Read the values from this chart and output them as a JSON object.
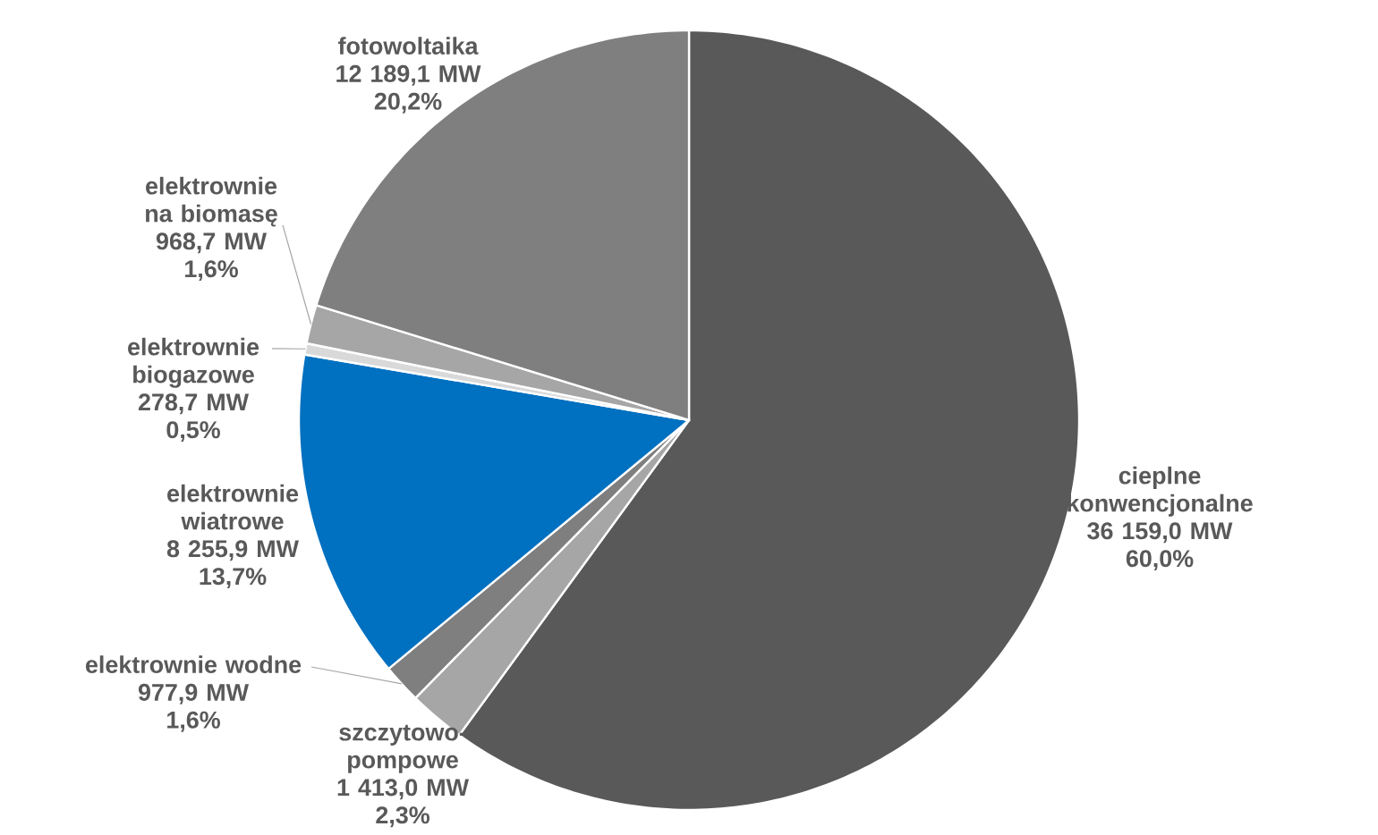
{
  "chart_data": {
    "type": "pie",
    "categories": [
      "cieplne konwencjonalne",
      "szczytowo-pompowe",
      "elektrownie wodne",
      "elektrownie wiatrowe",
      "elektrownie biogazowe",
      "elektrownie na biomasę",
      "fotowoltaika"
    ],
    "values": [
      36159.0,
      1413.0,
      977.9,
      8255.9,
      278.7,
      968.7,
      12189.1
    ],
    "value_labels": [
      "36 159,0 MW",
      "1 413,0 MW",
      "977,9 MW",
      "8 255,9 MW",
      "278,7 MW",
      "968,7 MW",
      "12 189,1 MW"
    ],
    "colors": [
      "#595959",
      "#a6a6a6",
      "#7f7f7f",
      "#0070c0",
      "#d9d9d9",
      "#a6a6a6",
      "#7f7f7f"
    ],
    "annotations": [
      "60,0%",
      "2,3%",
      "1,6%",
      "13,7%",
      "0,5%",
      "1,6%",
      "20,2%"
    ]
  }
}
